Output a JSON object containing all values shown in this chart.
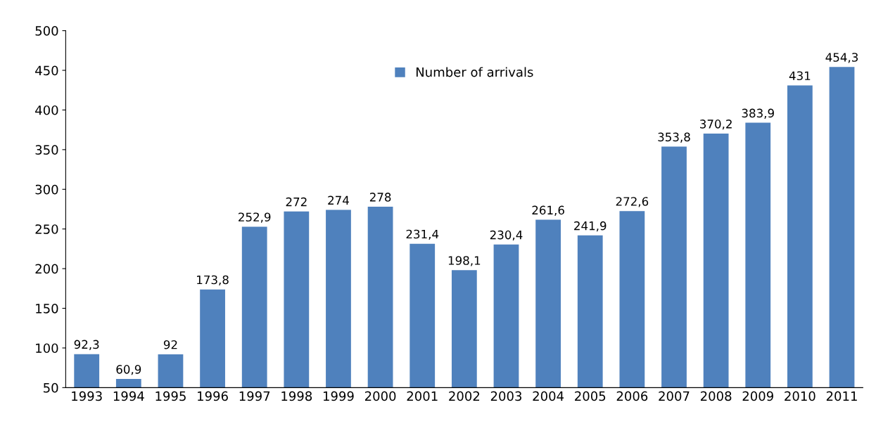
{
  "chart_data": {
    "type": "bar",
    "categories": [
      "1993",
      "1994",
      "1995",
      "1996",
      "1997",
      "1998",
      "1999",
      "2000",
      "2001",
      "2002",
      "2003",
      "2004",
      "2005",
      "2006",
      "2007",
      "2008",
      "2009",
      "2010",
      "2011"
    ],
    "series": [
      {
        "name": "Number of arrivals",
        "color": "#4f81bd",
        "values": [
          92.3,
          60.9,
          92,
          173.8,
          252.9,
          272,
          274,
          278,
          231.4,
          198.1,
          230.4,
          261.6,
          241.9,
          272.6,
          353.8,
          370.2,
          383.9,
          431,
          454.3
        ],
        "value_labels": [
          "92,3",
          "60,9",
          "92",
          "173,8",
          "252,9",
          "272",
          "274",
          "278",
          "231,4",
          "198,1",
          "230,4",
          "261,6",
          "241,9",
          "272,6",
          "353,8",
          "370,2",
          "383,9",
          "431",
          "454,3"
        ]
      }
    ],
    "ylim": [
      50,
      500
    ],
    "yticks": [
      50,
      100,
      150,
      200,
      250,
      300,
      350,
      400,
      450,
      500
    ],
    "grid": false,
    "legend": "top"
  }
}
